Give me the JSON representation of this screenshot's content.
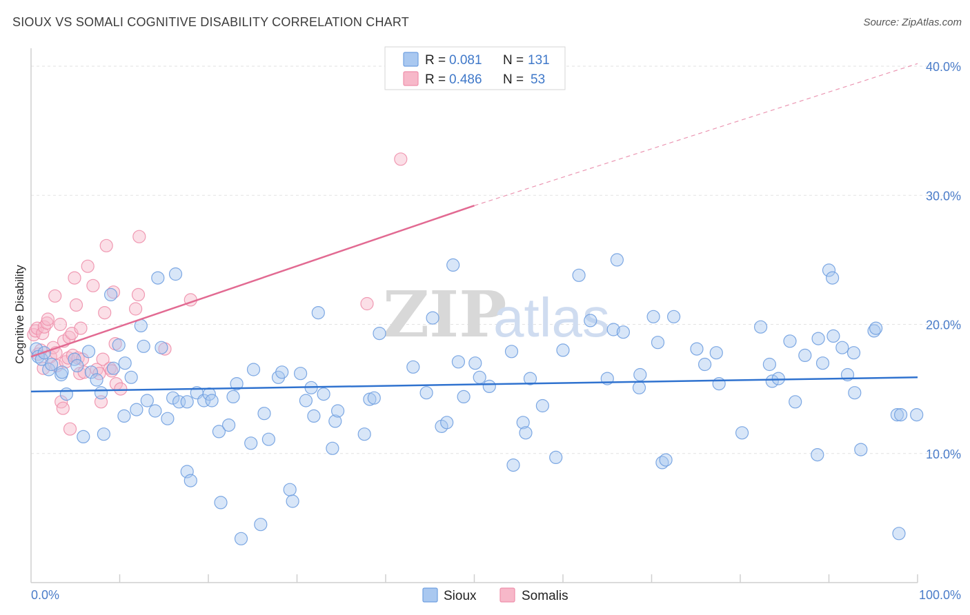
{
  "header": {
    "title": "SIOUX VS SOMALI COGNITIVE DISABILITY CORRELATION CHART",
    "source": "Source: ZipAtlas.com"
  },
  "watermark": {
    "zip": "ZIP",
    "atlas": "atlas"
  },
  "legend": {
    "rows": [
      {
        "r_label": "R = ",
        "r_value": "0.081",
        "n_label": "N = ",
        "n_value": "131",
        "color": "#a9c8f0"
      },
      {
        "r_label": "R = ",
        "r_value": "0.486",
        "n_label": "N = ",
        "n_value": "53",
        "color": "#f7b8c9"
      }
    ]
  },
  "bottom_legend": [
    {
      "label": "Sioux",
      "color": "#a9c8f0"
    },
    {
      "label": "Somalis",
      "color": "#f7b8c9"
    }
  ],
  "chart_data": {
    "type": "scatter",
    "title": "SIOUX VS SOMALI COGNITIVE DISABILITY CORRELATION CHART",
    "xlabel": "",
    "ylabel": "Cognitive Disability",
    "xlim": [
      0,
      100
    ],
    "ylim": [
      0,
      40
    ],
    "x_tick_labels": [
      "0.0%",
      "100.0%"
    ],
    "y_ticks": [
      10,
      20,
      30,
      40
    ],
    "y_tick_labels": [
      "10.0%",
      "20.0%",
      "30.0%",
      "40.0%"
    ],
    "grid": true,
    "legend_position": "top-center",
    "series": [
      {
        "name": "Sioux",
        "color": "#6f9fe0",
        "fill": "#a9c8f0",
        "R": 0.081,
        "N": 131,
        "trend": {
          "x": [
            0,
            100
          ],
          "y": [
            14.8,
            15.9
          ]
        },
        "points": [
          [
            0.6,
            18.1
          ],
          [
            0.8,
            17.5
          ],
          [
            1.2,
            17.3
          ],
          [
            1.5,
            17.8
          ],
          [
            2,
            16.5
          ],
          [
            2.3,
            16.9
          ],
          [
            3.4,
            16.1
          ],
          [
            3.5,
            16.3
          ],
          [
            4,
            14.6
          ],
          [
            4.9,
            17.3
          ],
          [
            5.2,
            16.8
          ],
          [
            5.9,
            11.3
          ],
          [
            6.5,
            17.9
          ],
          [
            6.8,
            16.3
          ],
          [
            7.4,
            15.7
          ],
          [
            7.9,
            14.7
          ],
          [
            8.2,
            11.5
          ],
          [
            9,
            22.3
          ],
          [
            9.3,
            16.6
          ],
          [
            9.9,
            18.4
          ],
          [
            10.5,
            12.9
          ],
          [
            10.6,
            17
          ],
          [
            11.3,
            15.9
          ],
          [
            11.9,
            13.4
          ],
          [
            12.4,
            19.9
          ],
          [
            12.7,
            18.3
          ],
          [
            13.1,
            14.1
          ],
          [
            14,
            13.3
          ],
          [
            14.3,
            23.6
          ],
          [
            14.7,
            18.2
          ],
          [
            15.4,
            12.7
          ],
          [
            16,
            14.3
          ],
          [
            16.3,
            23.9
          ],
          [
            16.7,
            14
          ],
          [
            17.6,
            14
          ],
          [
            17.6,
            8.6
          ],
          [
            18,
            7.9
          ],
          [
            18.7,
            14.7
          ],
          [
            19.5,
            14.1
          ],
          [
            20.1,
            14.6
          ],
          [
            20.4,
            14.1
          ],
          [
            21.2,
            11.7
          ],
          [
            21.4,
            6.2
          ],
          [
            22.3,
            12.2
          ],
          [
            22.8,
            14.4
          ],
          [
            23.2,
            15.4
          ],
          [
            23.7,
            3.4
          ],
          [
            24.8,
            10.8
          ],
          [
            25.1,
            16.5
          ],
          [
            25.9,
            4.5
          ],
          [
            26.3,
            13.1
          ],
          [
            26.8,
            11.1
          ],
          [
            27.9,
            15.9
          ],
          [
            28.3,
            16.3
          ],
          [
            29.2,
            7.2
          ],
          [
            29.5,
            6.3
          ],
          [
            30.4,
            16.2
          ],
          [
            31,
            14.1
          ],
          [
            31.6,
            15.1
          ],
          [
            31.9,
            12.9
          ],
          [
            32.4,
            20.9
          ],
          [
            33,
            14.6
          ],
          [
            34,
            10.4
          ],
          [
            34.3,
            12.5
          ],
          [
            34.6,
            13.3
          ],
          [
            37.6,
            11.5
          ],
          [
            38.2,
            14.2
          ],
          [
            38.7,
            14.3
          ],
          [
            39.3,
            19.3
          ],
          [
            43.1,
            16.7
          ],
          [
            44.6,
            14.7
          ],
          [
            45.3,
            20.5
          ],
          [
            46.3,
            12.1
          ],
          [
            46.9,
            12.4
          ],
          [
            47.6,
            24.6
          ],
          [
            48.2,
            17.1
          ],
          [
            48.8,
            14.4
          ],
          [
            50.1,
            17
          ],
          [
            50.6,
            15.9
          ],
          [
            51.7,
            15.2
          ],
          [
            54.2,
            17.9
          ],
          [
            54.4,
            9.1
          ],
          [
            55.5,
            12.4
          ],
          [
            55.8,
            11.6
          ],
          [
            56.3,
            15.8
          ],
          [
            57.7,
            13.7
          ],
          [
            59.2,
            9.7
          ],
          [
            60,
            18
          ],
          [
            61.8,
            23.8
          ],
          [
            63.1,
            20.3
          ],
          [
            65,
            15.8
          ],
          [
            65.7,
            19.6
          ],
          [
            66.1,
            25
          ],
          [
            66.8,
            19.4
          ],
          [
            68.6,
            15.1
          ],
          [
            68.7,
            16.1
          ],
          [
            70.2,
            20.6
          ],
          [
            70.7,
            18.6
          ],
          [
            71.2,
            9.3
          ],
          [
            71.6,
            9.5
          ],
          [
            72.5,
            20.6
          ],
          [
            75.1,
            18.1
          ],
          [
            76,
            16.9
          ],
          [
            77.3,
            17.8
          ],
          [
            77.6,
            15.4
          ],
          [
            80.2,
            11.6
          ],
          [
            82.3,
            19.8
          ],
          [
            83.3,
            16.9
          ],
          [
            83.6,
            15.6
          ],
          [
            84.3,
            15.8
          ],
          [
            85.6,
            18.7
          ],
          [
            86.2,
            14
          ],
          [
            87.3,
            17.6
          ],
          [
            88.7,
            9.9
          ],
          [
            88.8,
            18.9
          ],
          [
            89.3,
            17
          ],
          [
            90,
            24.2
          ],
          [
            90.4,
            23.6
          ],
          [
            90.5,
            19.1
          ],
          [
            91.5,
            18.2
          ],
          [
            92.1,
            16.1
          ],
          [
            92.8,
            17.8
          ],
          [
            92.9,
            14.7
          ],
          [
            93.6,
            10.3
          ],
          [
            95.1,
            19.5
          ],
          [
            95.3,
            19.7
          ],
          [
            97.7,
            13
          ],
          [
            97.9,
            3.8
          ],
          [
            98.1,
            13
          ],
          [
            99.9,
            13
          ]
        ]
      },
      {
        "name": "Somalis",
        "color": "#ee8fab",
        "fill": "#f7b8c9",
        "R": 0.486,
        "N": 53,
        "trend": {
          "x": [
            0,
            50
          ],
          "y": [
            17.5,
            29.2
          ]
        },
        "trend_dashed": {
          "x": [
            50,
            100
          ],
          "y": [
            29.2,
            40.2
          ]
        },
        "points": [
          [
            0.3,
            19.2
          ],
          [
            0.5,
            19.5
          ],
          [
            0.7,
            19.7
          ],
          [
            0.8,
            17.7
          ],
          [
            1.1,
            18
          ],
          [
            1.3,
            19.3
          ],
          [
            1.4,
            16.6
          ],
          [
            1.5,
            19.8
          ],
          [
            1.8,
            20.1
          ],
          [
            1.9,
            20.4
          ],
          [
            2.2,
            17.5
          ],
          [
            2.5,
            18.2
          ],
          [
            2.7,
            22.2
          ],
          [
            2.8,
            17.8
          ],
          [
            2.9,
            16.8
          ],
          [
            3.3,
            20
          ],
          [
            3.4,
            14
          ],
          [
            3.6,
            13.5
          ],
          [
            3.7,
            18.7
          ],
          [
            3.9,
            17.1
          ],
          [
            4.2,
            17.4
          ],
          [
            4.3,
            19
          ],
          [
            4.4,
            11.9
          ],
          [
            4.6,
            19.3
          ],
          [
            4.7,
            17.6
          ],
          [
            4.9,
            23.6
          ],
          [
            5.1,
            21.5
          ],
          [
            5.3,
            17.4
          ],
          [
            5.5,
            16.2
          ],
          [
            5.6,
            19.7
          ],
          [
            5.8,
            17.3
          ],
          [
            6,
            16.3
          ],
          [
            6.4,
            24.5
          ],
          [
            7,
            23
          ],
          [
            7.4,
            16.5
          ],
          [
            7.7,
            16.2
          ],
          [
            7.9,
            14
          ],
          [
            8.1,
            17.3
          ],
          [
            8.3,
            20.9
          ],
          [
            8.5,
            26.1
          ],
          [
            8.9,
            16.6
          ],
          [
            9.1,
            16.4
          ],
          [
            9.3,
            22.5
          ],
          [
            9.5,
            18.5
          ],
          [
            9.6,
            15.4
          ],
          [
            10.1,
            15
          ],
          [
            11.8,
            21.2
          ],
          [
            12.1,
            22.3
          ],
          [
            12.2,
            26.8
          ],
          [
            15.1,
            18.1
          ],
          [
            18,
            21.9
          ],
          [
            37.9,
            21.6
          ],
          [
            41.7,
            32.8
          ]
        ]
      }
    ]
  }
}
